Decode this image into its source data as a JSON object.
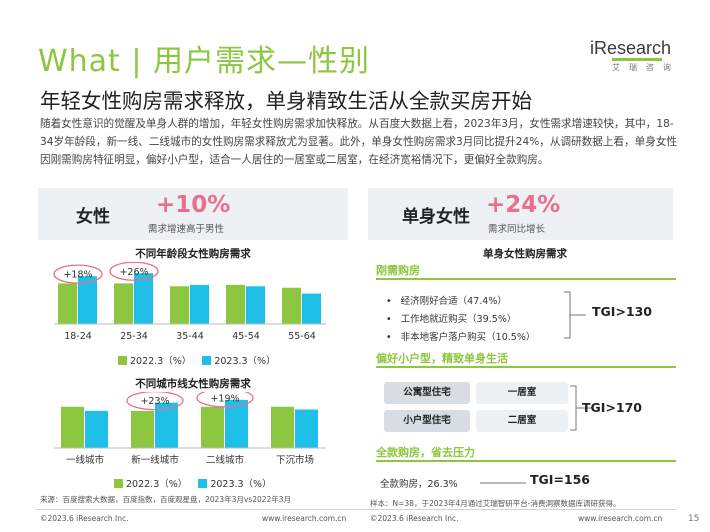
{
  "header": {
    "title": "What | 用户需求—性别",
    "logo_text": "iResearch",
    "logo_sub": "艾瑞咨询",
    "headline": "年轻女性购房需求释放，单身精致生活从全款买房开始",
    "intro": "随着女性意识的觉醒及单身人群的增加，年轻女性购房需求加快释放。从百度大数据上看，2023年3月，女性需求增速较快，其中，18-34岁年龄段，新一线、二线城市的女性购房需求释放尤为显著。此外，单身女性购房需求3月同比提升24%，从调研数据上看，单身女性因刚需购房特征明显，偏好小户型，适合一人居住的一居室或二居室，在经济宽裕情况下，更偏好全款购房。"
  },
  "left_panel": {
    "label": "女性",
    "figure": "+10%",
    "note": "需求增速高于男性"
  },
  "right_panel": {
    "label": "单身女性",
    "figure": "+24%",
    "note": "需求同比增长",
    "title": "单身女性购房需求",
    "sections": [
      {
        "heading": "刚需购房",
        "bullets": [
          "经济刚好合适（47.4%）",
          "工作地就近购买（39.5%）",
          "非本地客户落户购买（10.5%）"
        ],
        "tgi": "TGI>130"
      },
      {
        "heading": "偏好小户型，精致单身生活",
        "rows": [
          {
            "type": "公寓型住宅",
            "room": "一居室"
          },
          {
            "type": "小户型住宅",
            "room": "二居室"
          }
        ],
        "tgi": "TGI>170"
      },
      {
        "heading": "全款购房，省去压力",
        "line": "全款购房，26.3%",
        "tgi": "TGI=156"
      }
    ]
  },
  "colors": {
    "green": "#8dc63f",
    "blue": "#1fc0e8",
    "pink": "#e96f8c"
  },
  "chart_data": [
    {
      "type": "bar",
      "title": "不同年龄段女性购房需求",
      "categories": [
        "18-24",
        "25-34",
        "35-44",
        "45-54",
        "55-64"
      ],
      "series": [
        {
          "name": "2022.3（%）",
          "values": [
            28,
            28,
            26,
            27,
            25
          ]
        },
        {
          "name": "2023.3（%）",
          "values": [
            33,
            35,
            27,
            26,
            21
          ]
        }
      ],
      "annotations": [
        {
          "category": "18-24",
          "text": "+18%"
        },
        {
          "category": "25-34",
          "text": "+26%"
        }
      ],
      "ylim": [
        0,
        40
      ]
    },
    {
      "type": "bar",
      "title": "不同城市线女性购房需求",
      "categories": [
        "一线城市",
        "新一线城市",
        "二线城市",
        "下沉市场"
      ],
      "series": [
        {
          "name": "2022.3（%）",
          "values": [
            30,
            27,
            30,
            30
          ]
        },
        {
          "name": "2023.3（%）",
          "values": [
            27,
            33,
            35,
            28
          ]
        }
      ],
      "annotations": [
        {
          "category": "新一线城市",
          "text": "+23%"
        },
        {
          "category": "二线城市",
          "text": "+19%"
        }
      ],
      "ylim": [
        0,
        40
      ]
    }
  ],
  "footer": {
    "left_source": "来源：百度搜索大数据，百度指数，百度观星盘，2023年3月vs2022年3月",
    "right_source": "样本：N=38，于2023年4月通过艾瑞智研平台-消费洞察数据库调研获得。",
    "copyright_left": "©2023.6 iResearch Inc.",
    "url_left": "www.iresearch.com.cn",
    "copyright_right": "©2023.6 iResearch Inc.",
    "url_right": "www.iresearch.com.cn",
    "page": "15"
  }
}
